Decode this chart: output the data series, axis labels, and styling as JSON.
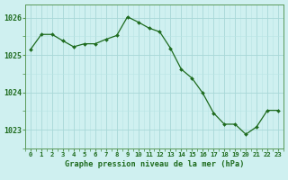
{
  "x": [
    0,
    1,
    2,
    3,
    4,
    5,
    6,
    7,
    8,
    9,
    10,
    11,
    12,
    13,
    14,
    15,
    16,
    17,
    18,
    19,
    20,
    21,
    22,
    23
  ],
  "y": [
    1025.15,
    1025.55,
    1025.55,
    1025.38,
    1025.22,
    1025.3,
    1025.3,
    1025.42,
    1025.52,
    1026.02,
    1025.88,
    1025.72,
    1025.62,
    1025.18,
    1024.62,
    1024.38,
    1023.98,
    1023.45,
    1023.15,
    1023.15,
    1022.88,
    1023.08,
    1023.52,
    1023.52
  ],
  "line_color": "#1e6b1e",
  "marker_color": "#1e6b1e",
  "bg_color": "#cff0f0",
  "grid_color_major": "#a8d8d8",
  "grid_color_minor": "#b8e4e4",
  "xlabel": "Graphe pression niveau de la mer (hPa)",
  "xlabel_color": "#1e6b1e",
  "tick_color": "#1e6b1e",
  "spine_color": "#5a9a5a",
  "ylim": [
    1022.5,
    1026.35
  ],
  "yticks": [
    1023,
    1024,
    1025,
    1026
  ],
  "xticks": [
    0,
    1,
    2,
    3,
    4,
    5,
    6,
    7,
    8,
    9,
    10,
    11,
    12,
    13,
    14,
    15,
    16,
    17,
    18,
    19,
    20,
    21,
    22,
    23
  ]
}
